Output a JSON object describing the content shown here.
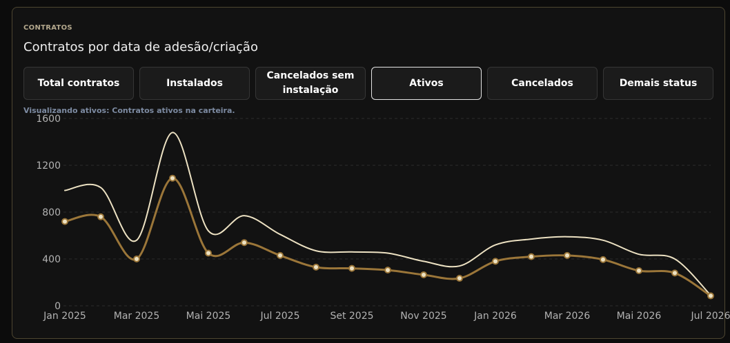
{
  "card": {
    "eyebrow": "CONTRATOS",
    "title": "Contratos por data de adesão/criação",
    "hint": "Visualizando ativos: Contratos ativos na carteira."
  },
  "tabs": [
    {
      "label": "Total contratos",
      "active": false
    },
    {
      "label": "Instalados",
      "active": false
    },
    {
      "label": "Cancelados sem instalação",
      "active": false
    },
    {
      "label": "Ativos",
      "active": true
    },
    {
      "label": "Cancelados",
      "active": false
    },
    {
      "label": "Demais status",
      "active": false
    }
  ],
  "colors": {
    "background": "#121212",
    "border": "#4e4631",
    "series_total": "#ede2c3",
    "series_ativos": "#9b7639",
    "grid": "#2c2c2c",
    "tick": "#b3b3b3"
  },
  "chart_data": {
    "type": "line",
    "title": "",
    "xlabel": "",
    "ylabel": "",
    "ylim": [
      0,
      1600
    ],
    "yticks": [
      0,
      400,
      800,
      1200,
      1600
    ],
    "grid": true,
    "x": [
      "2025-01",
      "2025-02",
      "2025-03",
      "2025-04",
      "2025-05",
      "2025-06",
      "2025-07",
      "2025-08",
      "2025-09",
      "2025-10",
      "2025-11",
      "2025-12",
      "2026-01",
      "2026-02",
      "2026-03",
      "2026-04",
      "2026-05",
      "2026-06",
      "2026-07"
    ],
    "tick_labels": [
      "Jan 2025",
      "Mar 2025",
      "Mai 2025",
      "Jul 2025",
      "Set 2025",
      "Nov 2025",
      "Jan 2026",
      "Mar 2026",
      "Mai 2026",
      "Jul 2026"
    ],
    "tick_index": [
      0,
      2,
      4,
      6,
      8,
      10,
      12,
      14,
      16,
      18
    ],
    "series": [
      {
        "key": "total",
        "values": [
          985,
          1010,
          560,
          1480,
          640,
          770,
          610,
          470,
          460,
          450,
          380,
          340,
          520,
          570,
          590,
          560,
          440,
          400,
          90
        ]
      },
      {
        "key": "ativos",
        "values": [
          720,
          760,
          400,
          1090,
          450,
          540,
          430,
          330,
          320,
          305,
          265,
          235,
          380,
          420,
          430,
          395,
          300,
          280,
          85
        ]
      }
    ]
  }
}
